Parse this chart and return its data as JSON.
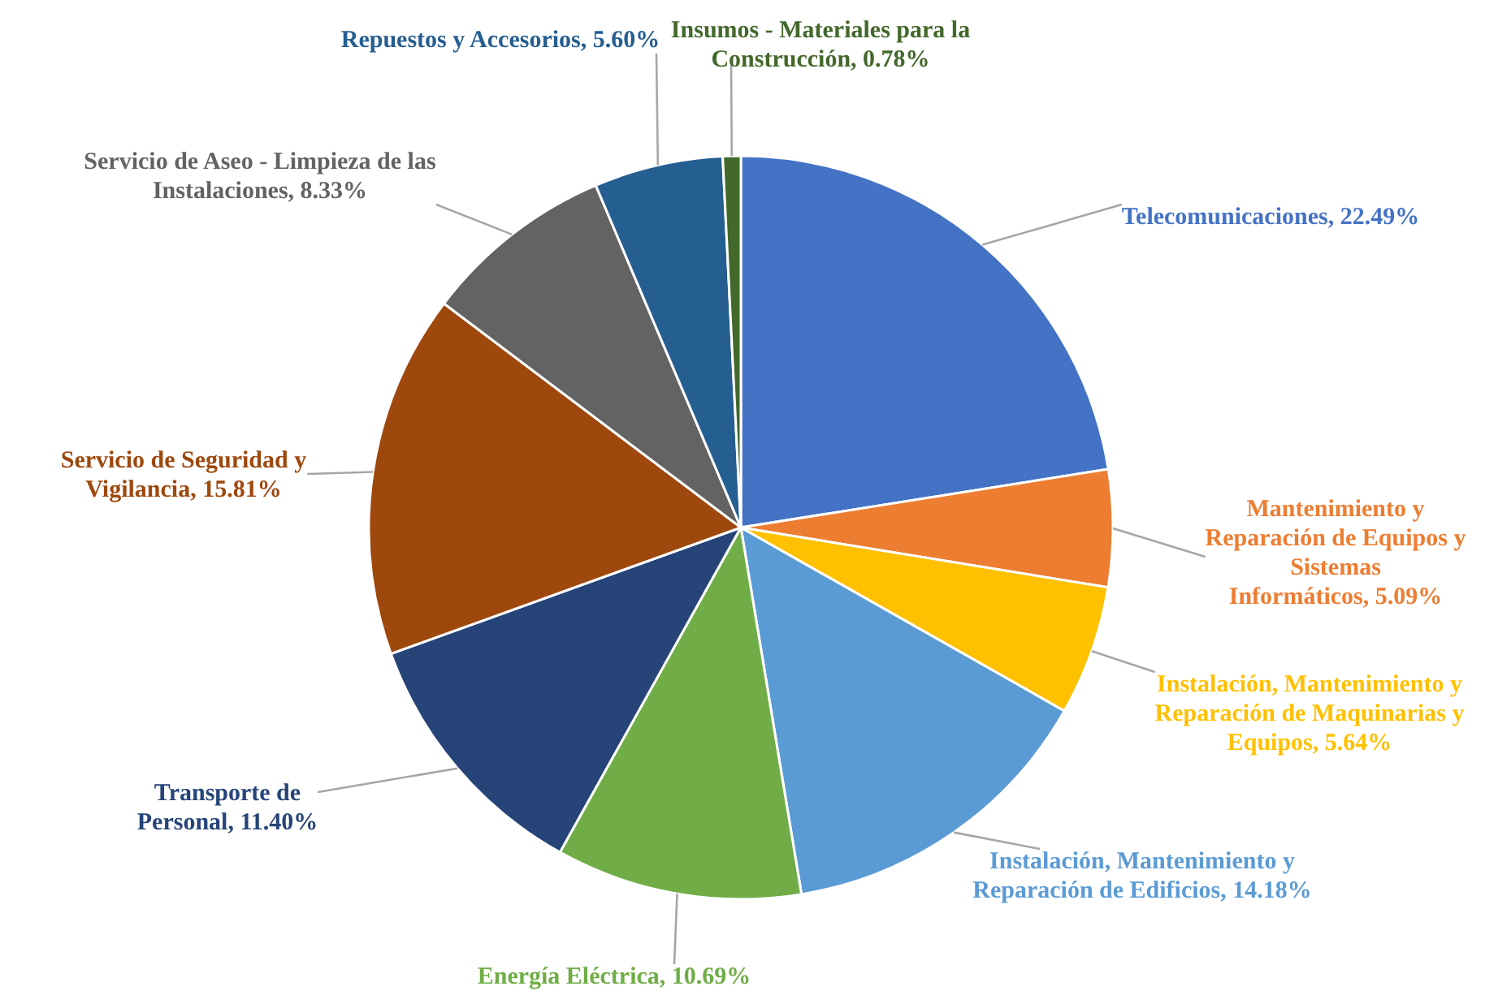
{
  "chart_data": {
    "type": "pie",
    "categories": [
      "Telecomunicaciones",
      "Mantenimiento y Reparación de Equipos y Sistemas Informáticos",
      "Instalación, Mantenimiento y Reparación de Maquinarias y Equipos",
      "Instalación, Mantenimiento y Reparación de Edificios",
      "Energía Eléctrica",
      "Transporte de Personal",
      "Servicio de Seguridad y Vigilancia",
      "Servicio de Aseo - Limpieza de las Instalaciones",
      "Repuestos y Accesorios",
      "Insumos - Materiales para la Construcción"
    ],
    "values": [
      22.49,
      5.09,
      5.64,
      14.18,
      10.69,
      11.4,
      15.81,
      8.33,
      5.6,
      0.78
    ],
    "value_labels": [
      "22.49%",
      "5.09%",
      "5.64%",
      "14.18%",
      "10.69%",
      "11.40%",
      "15.81%",
      "8.33%",
      "5.60%",
      "0.78%"
    ],
    "colors": [
      "#4472c4",
      "#ed7d31",
      "#ffc000",
      "#5b9bd5",
      "#70ad47",
      "#264478",
      "#9e480e",
      "#636363",
      "#255e91",
      "#43682b"
    ]
  }
}
